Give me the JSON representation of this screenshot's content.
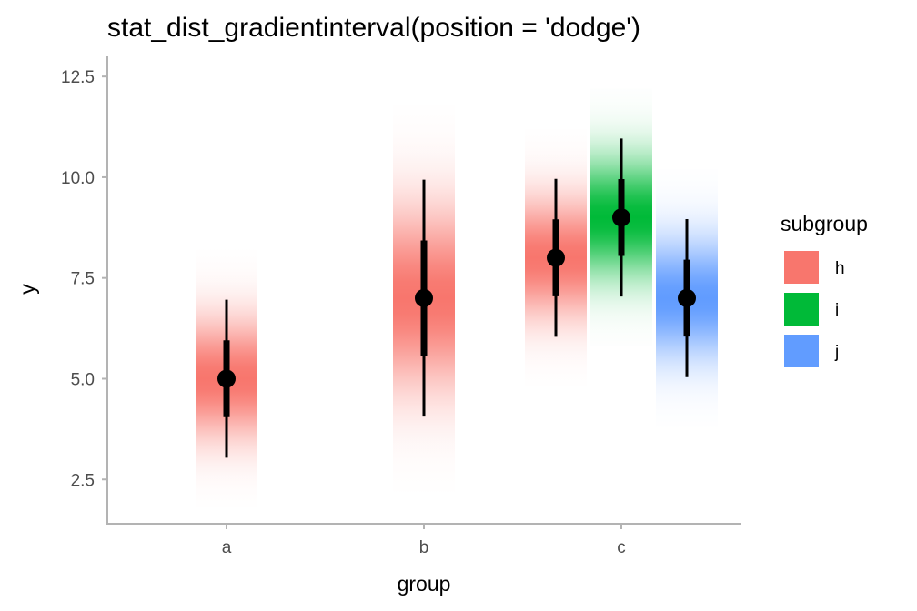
{
  "chart_data": {
    "type": "gradientinterval",
    "title": "stat_dist_gradientinterval(position = 'dodge')",
    "xlabel": "group",
    "ylabel": "y",
    "categories": [
      "a",
      "b",
      "c"
    ],
    "yticks": [
      "2.5",
      "5.0",
      "7.5",
      "10.0",
      "12.5"
    ],
    "ytick_values": [
      2.5,
      5.0,
      7.5,
      10.0,
      12.5
    ],
    "ylim": [
      1.4,
      13.0
    ],
    "grid": false,
    "legend": {
      "title": "subgroup",
      "position": "right",
      "entries": [
        {
          "label": "h",
          "color": "#F8766D"
        },
        {
          "label": "i",
          "color": "#00BA38"
        },
        {
          "label": "j",
          "color": "#619CFF"
        }
      ]
    },
    "series": [
      {
        "group": "a",
        "subgroup": "h",
        "color": "#F8766D",
        "mean": 5.0,
        "sd": 1.0
      },
      {
        "group": "b",
        "subgroup": "h",
        "color": "#F8766D",
        "mean": 7.0,
        "sd": 1.5
      },
      {
        "group": "c",
        "subgroup": "h",
        "color": "#F8766D",
        "mean": 8.0,
        "sd": 1.0
      },
      {
        "group": "c",
        "subgroup": "i",
        "color": "#00BA38",
        "mean": 9.0,
        "sd": 1.0
      },
      {
        "group": "c",
        "subgroup": "j",
        "color": "#619CFF",
        "mean": 7.0,
        "sd": 1.0
      }
    ]
  }
}
